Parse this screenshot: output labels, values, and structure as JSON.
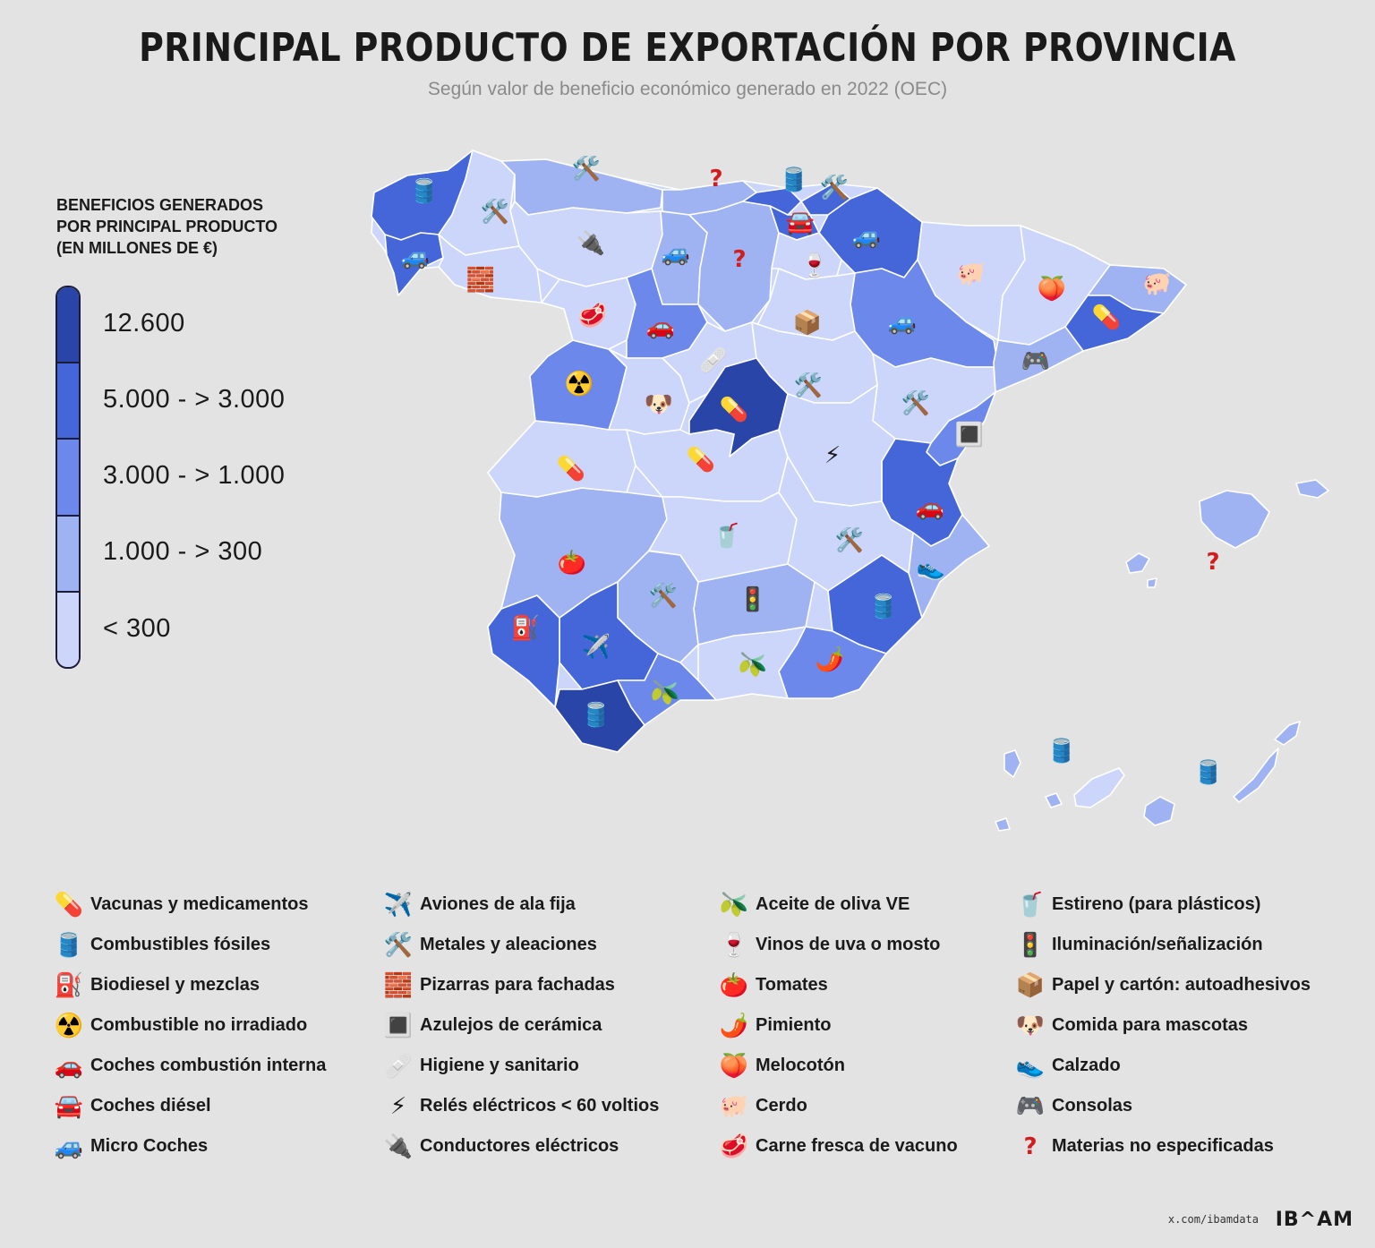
{
  "title": "PRINCIPAL PRODUCTO DE EXPORTACIÓN POR PROVINCIA",
  "subtitle": "Según valor de beneficio económico generado en 2022 (OEC)",
  "scale": {
    "title_lines": [
      "BENEFICIOS GENERADOS",
      "POR PRINCIPAL PRODUCTO",
      "(EN MILLONES DE €)"
    ],
    "bins": [
      {
        "label": "12.600",
        "color": "#2a45a8"
      },
      {
        "label": "5.000 - > 3.000",
        "color": "#4466d8"
      },
      {
        "label": "3.000 - > 1.000",
        "color": "#6b88ea"
      },
      {
        "label": "1.000 - > 300",
        "color": "#9fb3f2"
      },
      {
        "label": "< 300",
        "color": "#ccd6fb"
      }
    ]
  },
  "map": {
    "land_color": "#ccd6fb",
    "regions_note": "choropleth by province",
    "icons": [
      {
        "icon": "oil-drum",
        "glyph": "🛢️"
      },
      {
        "icon": "tools",
        "glyph": "🛠️"
      },
      {
        "icon": "tools",
        "glyph": "🛠️"
      },
      {
        "icon": "question",
        "glyph": "?"
      },
      {
        "icon": "oil-drum",
        "glyph": "🛢️"
      },
      {
        "icon": "tools",
        "glyph": "🛠️"
      },
      {
        "icon": "blue-car",
        "glyph": "🚙"
      },
      {
        "icon": "plug",
        "glyph": "🔌"
      },
      {
        "icon": "blue-car",
        "glyph": "🚙"
      },
      {
        "icon": "question",
        "glyph": "?"
      },
      {
        "icon": "car-front",
        "glyph": "🚘"
      },
      {
        "icon": "blue-car",
        "glyph": "🚙"
      },
      {
        "icon": "bricks",
        "glyph": "🧱"
      },
      {
        "icon": "wine",
        "glyph": "🍷"
      },
      {
        "icon": "pig",
        "glyph": "🐖"
      },
      {
        "icon": "peach",
        "glyph": "🍑"
      },
      {
        "icon": "pig",
        "glyph": "🐖"
      },
      {
        "icon": "meat",
        "glyph": "🥩"
      },
      {
        "icon": "red-car",
        "glyph": "🚗"
      },
      {
        "icon": "box",
        "glyph": "📦"
      },
      {
        "icon": "blue-car",
        "glyph": "🚙"
      },
      {
        "icon": "pill",
        "glyph": "💊"
      },
      {
        "icon": "bandage",
        "glyph": "🩹"
      },
      {
        "icon": "gamepad",
        "glyph": "🎮"
      },
      {
        "icon": "radioactive",
        "glyph": "☢️"
      },
      {
        "icon": "dog",
        "glyph": "🐶"
      },
      {
        "icon": "pill",
        "glyph": "💊"
      },
      {
        "icon": "tools",
        "glyph": "🛠️"
      },
      {
        "icon": "tools",
        "glyph": "🛠️"
      },
      {
        "icon": "tiles",
        "glyph": "🔳"
      },
      {
        "icon": "pill",
        "glyph": "💊"
      },
      {
        "icon": "pill",
        "glyph": "💊"
      },
      {
        "icon": "lightning",
        "glyph": "⚡"
      },
      {
        "icon": "red-car",
        "glyph": "🚗"
      },
      {
        "icon": "cup",
        "glyph": "🥤"
      },
      {
        "icon": "tools",
        "glyph": "🛠️"
      },
      {
        "icon": "tomato",
        "glyph": "🍅"
      },
      {
        "icon": "shoe",
        "glyph": "👟"
      },
      {
        "icon": "question",
        "glyph": "?"
      },
      {
        "icon": "tools",
        "glyph": "🛠️"
      },
      {
        "icon": "traffic-light",
        "glyph": "🚦"
      },
      {
        "icon": "oil-drum",
        "glyph": "🛢️"
      },
      {
        "icon": "fuel-pump",
        "glyph": "⛽"
      },
      {
        "icon": "airplane",
        "glyph": "✈️"
      },
      {
        "icon": "olive",
        "glyph": "🫒"
      },
      {
        "icon": "chili",
        "glyph": "🌶️"
      },
      {
        "icon": "olive",
        "glyph": "🫒"
      },
      {
        "icon": "oil-drum",
        "glyph": "🛢️"
      },
      {
        "icon": "oil-drum",
        "glyph": "🛢️"
      },
      {
        "icon": "oil-drum",
        "glyph": "🛢️"
      }
    ]
  },
  "legend": [
    [
      {
        "icon": "pill-icon",
        "glyph": "💊",
        "label": "Vacunas y medicamentos"
      },
      {
        "icon": "oil-drum-icon",
        "glyph": "🛢️",
        "label": "Combustibles fósiles"
      },
      {
        "icon": "fuel-pump-icon",
        "glyph": "⛽",
        "label": "Biodiesel y mezclas"
      },
      {
        "icon": "radioactive-icon",
        "glyph": "☢️",
        "label": "Combustible no irradiado"
      },
      {
        "icon": "red-car-icon",
        "glyph": "🚗",
        "label": "Coches combustión interna"
      },
      {
        "icon": "car-front-icon",
        "glyph": "🚘",
        "label": "Coches diésel"
      },
      {
        "icon": "blue-car-icon",
        "glyph": "🚙",
        "label": "Micro Coches"
      }
    ],
    [
      {
        "icon": "airplane-icon",
        "glyph": "✈️",
        "label": "Aviones de ala fija"
      },
      {
        "icon": "tools-icon",
        "glyph": "🛠️",
        "label": "Metales y aleaciones"
      },
      {
        "icon": "bricks-icon",
        "glyph": "🧱",
        "label": "Pizarras para fachadas"
      },
      {
        "icon": "tiles-icon",
        "glyph": "🔳",
        "label": "Azulejos de cerámica"
      },
      {
        "icon": "bandage-icon",
        "glyph": "🩹",
        "label": "Higiene y sanitario"
      },
      {
        "icon": "lightning-icon",
        "glyph": "⚡",
        "label": "Relés eléctricos < 60 voltios"
      },
      {
        "icon": "plug-icon",
        "glyph": "🔌",
        "label": "Conductores eléctricos"
      }
    ],
    [
      {
        "icon": "olive-icon",
        "glyph": "🫒",
        "label": "Aceite de oliva VE"
      },
      {
        "icon": "wine-icon",
        "glyph": "🍷",
        "label": "Vinos de uva o mosto"
      },
      {
        "icon": "tomato-icon",
        "glyph": "🍅",
        "label": "Tomates"
      },
      {
        "icon": "chili-icon",
        "glyph": "🌶️",
        "label": "Pimiento"
      },
      {
        "icon": "peach-icon",
        "glyph": "🍑",
        "label": "Melocotón"
      },
      {
        "icon": "pig-icon",
        "glyph": "🐖",
        "label": "Cerdo"
      },
      {
        "icon": "meat-icon",
        "glyph": "🥩",
        "label": "Carne fresca de vacuno"
      }
    ],
    [
      {
        "icon": "cup-icon",
        "glyph": "🥤",
        "label": "Estireno (para plásticos)"
      },
      {
        "icon": "traffic-light-icon",
        "glyph": "🚦",
        "label": "Iluminación/señalización"
      },
      {
        "icon": "box-icon",
        "glyph": "📦",
        "label": "Papel y cartón: autoadhesivos"
      },
      {
        "icon": "dog-icon",
        "glyph": "🐶",
        "label": "Comida para mascotas"
      },
      {
        "icon": "shoe-icon",
        "glyph": "👟",
        "label": "Calzado"
      },
      {
        "icon": "gamepad-icon",
        "glyph": "🎮",
        "label": "Consolas"
      },
      {
        "icon": "question-icon",
        "glyph": "?",
        "label": "Materias no especificadas"
      }
    ]
  ],
  "footer": {
    "source": "x.com/ibamdata",
    "logo": "IB^AM"
  }
}
